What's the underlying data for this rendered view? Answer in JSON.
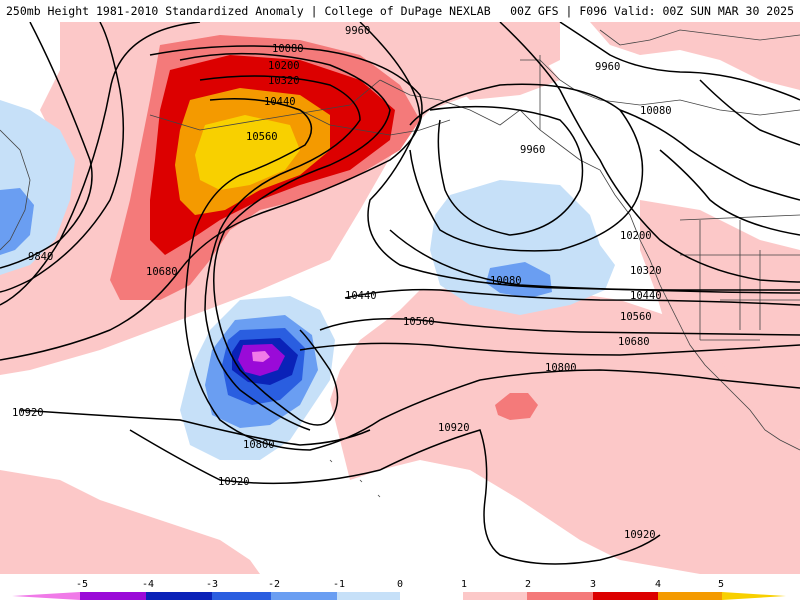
{
  "header": {
    "left_title": "250mb Height 1981-2010 Standardized Anomaly | College of DuPage NEXLAB",
    "right_title": "00Z GFS | F096 Valid: 00Z SUN MAR 30 2025"
  },
  "colors": {
    "pos_1": "#fcc8c8",
    "pos_2": "#f47a7a",
    "pos_3": "#dc0000",
    "pos_4": "#f49a00",
    "pos_5": "#f8d000",
    "neg_1": "#c6e0f8",
    "neg_2": "#6a9ef2",
    "neg_3": "#2a5ee0",
    "neg_4": "#0a22b8",
    "neg_5": "#9a0ad8",
    "neg_6": "#f07ae8",
    "contour": "#000000",
    "coast": "#444444"
  },
  "contour_labels": [
    "9960",
    "9960",
    "9960",
    "10080",
    "10080",
    "10080",
    "10200",
    "10200",
    "10320",
    "10320",
    "10440",
    "10440",
    "10440",
    "10560",
    "10560",
    "10560",
    "10680",
    "10680",
    "10800",
    "10800",
    "10920",
    "10920",
    "10920",
    "10920",
    "9840"
  ],
  "colorbar": {
    "ticks": [
      "-5",
      "-4",
      "-3",
      "-2",
      "-1",
      "0",
      "1",
      "2",
      "3",
      "4",
      "5"
    ]
  }
}
